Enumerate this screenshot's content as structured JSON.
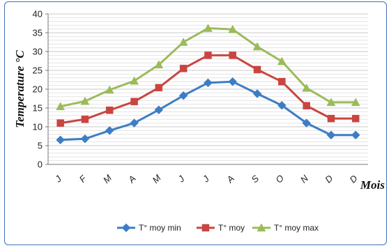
{
  "chart_data": {
    "type": "line",
    "categories": [
      "J",
      "F",
      "M",
      "A",
      "M",
      "J",
      "J",
      "A",
      "S",
      "O",
      "N",
      "D",
      "D"
    ],
    "series": [
      {
        "name": "T° moy min",
        "color": "#3d7dc4",
        "marker": "diamond",
        "values": [
          6.5,
          6.8,
          9,
          11,
          14.5,
          18.3,
          21.7,
          22,
          18.8,
          15.7,
          11,
          7.8,
          7.8
        ]
      },
      {
        "name": "T° moy",
        "color": "#c94540",
        "marker": "square",
        "values": [
          11,
          12,
          14.4,
          16.7,
          20.4,
          25.5,
          29,
          29,
          25.2,
          22,
          15.6,
          12.2,
          12.2
        ]
      },
      {
        "name": "T° moy max",
        "color": "#9bbb59",
        "marker": "triangle",
        "values": [
          15.4,
          16.8,
          19.8,
          22.2,
          26.5,
          32.5,
          36.2,
          35.9,
          31.3,
          27.4,
          20.3,
          16.5,
          16.5
        ]
      }
    ],
    "ylim": [
      0,
      40
    ],
    "yticks": [
      0,
      5,
      10,
      15,
      20,
      25,
      30,
      35,
      40
    ],
    "ylabel": "Temperature °C",
    "xlabel": "Mois",
    "grid": true,
    "legend_position": "bottom"
  }
}
